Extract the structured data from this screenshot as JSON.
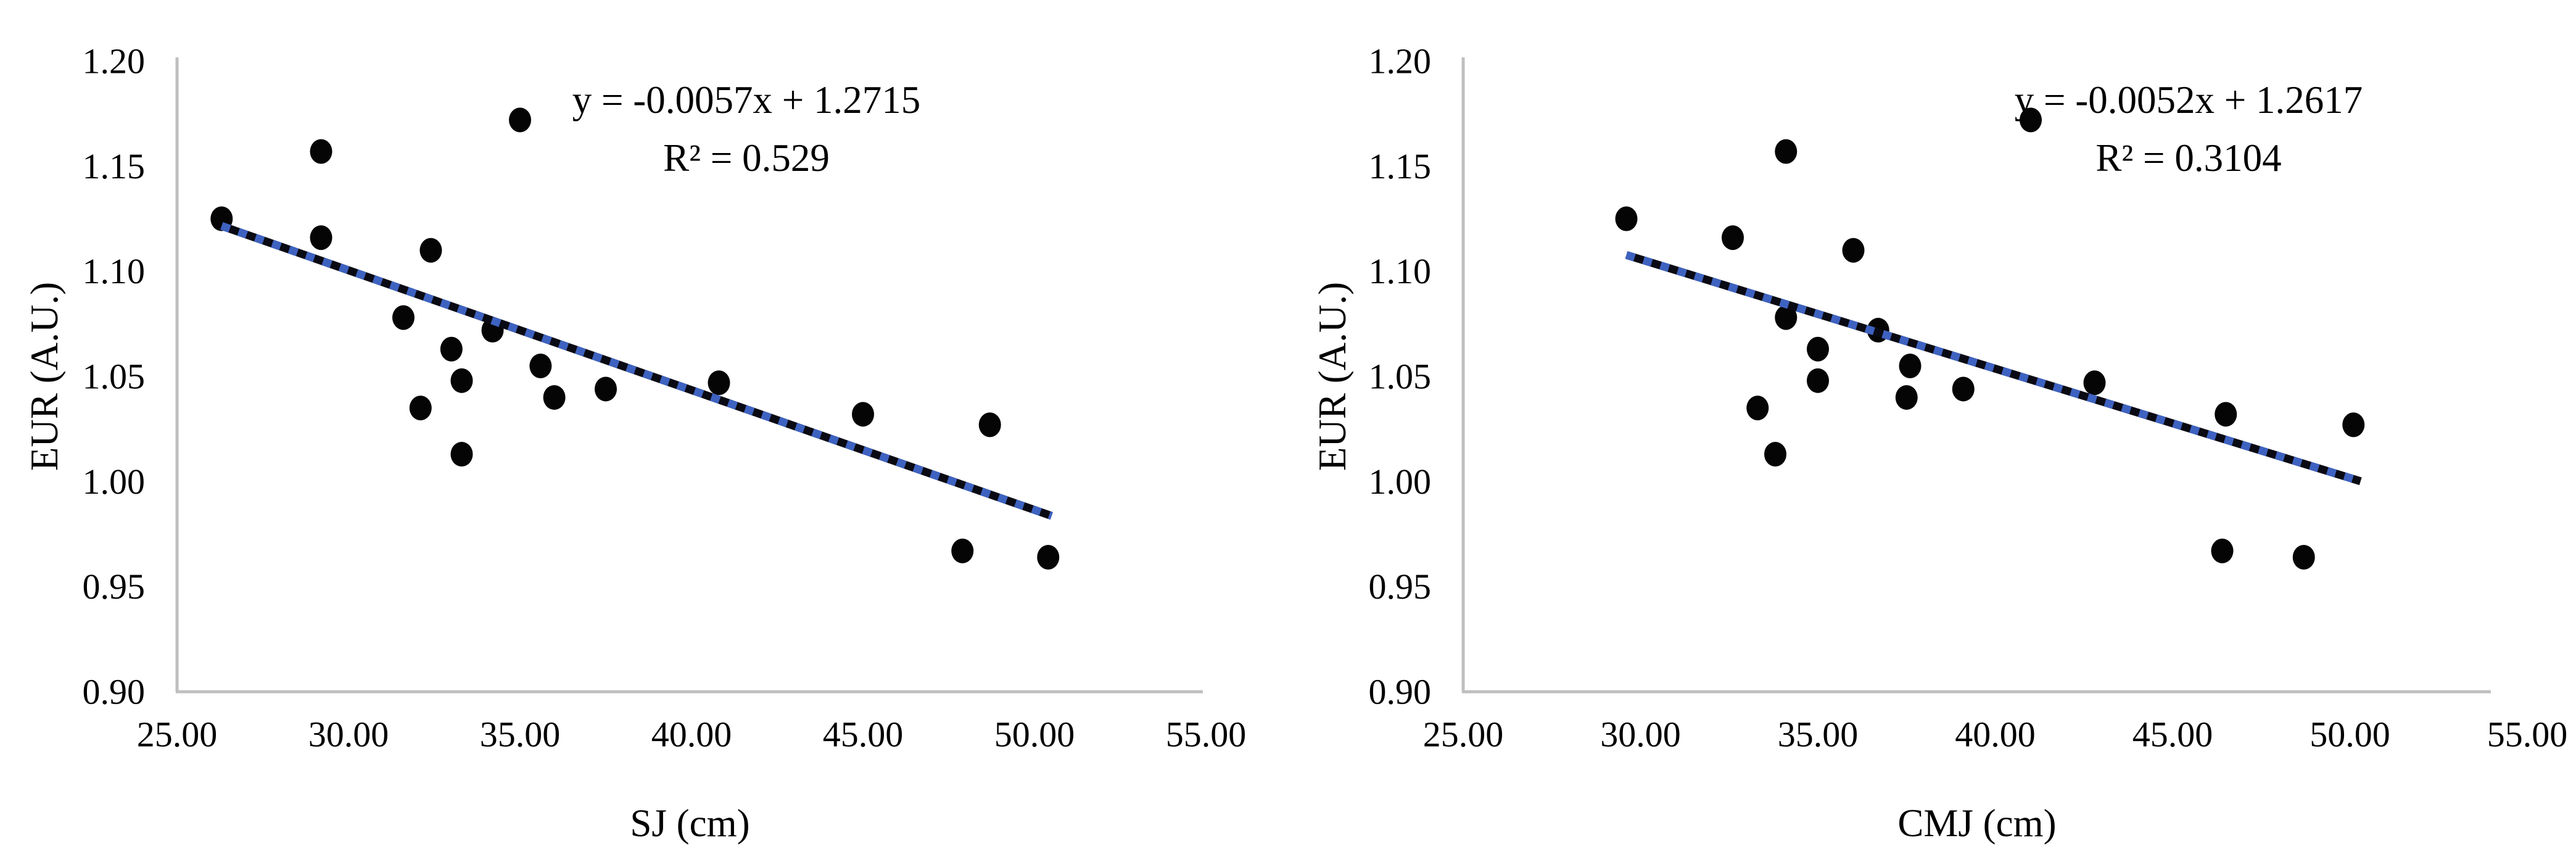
{
  "page": {
    "background": "#FFFFFF",
    "description": "Two scatter plots of elastic utilization ratio versus jump height"
  },
  "style": {
    "point_color": "#050505",
    "trend_base_color": "#0A0A14",
    "trend_dash_color": "#3E62C0",
    "axis_line_color": "#BFBFBF",
    "text_color": "#000000"
  },
  "chart_data": [
    {
      "type": "scatter",
      "title": "",
      "xlabel": "SJ (cm)",
      "ylabel": "EUR (A.U.)",
      "equation": "y = -0.0057x + 1.2715",
      "r_squared_label": "R² = 0.529",
      "legend_position": "none",
      "grid": false,
      "xlim": [
        25.0,
        55.0
      ],
      "ylim": [
        0.9,
        1.2
      ],
      "x_ticks": [
        "25.00",
        "30.00",
        "35.00",
        "40.00",
        "45.00",
        "50.00",
        "55.00"
      ],
      "y_ticks": [
        "1.20",
        "1.15",
        "1.10",
        "1.05",
        "1.00",
        "0.95",
        "0.90"
      ],
      "trend": {
        "slope": -0.0057,
        "intercept": 1.2715,
        "x_start": 26.3,
        "x_end": 50.5
      },
      "points": [
        [
          26.3,
          1.125
        ],
        [
          29.2,
          1.157
        ],
        [
          29.2,
          1.116
        ],
        [
          32.4,
          1.11
        ],
        [
          35.0,
          1.172
        ],
        [
          31.6,
          1.078
        ],
        [
          34.2,
          1.072
        ],
        [
          33.0,
          1.063
        ],
        [
          33.3,
          1.048
        ],
        [
          35.6,
          1.055
        ],
        [
          36.0,
          1.04
        ],
        [
          37.5,
          1.044
        ],
        [
          32.1,
          1.035
        ],
        [
          33.3,
          1.013
        ],
        [
          40.8,
          1.047
        ],
        [
          45.0,
          1.032
        ],
        [
          48.7,
          1.027
        ],
        [
          47.9,
          0.967
        ],
        [
          50.4,
          0.964
        ]
      ]
    },
    {
      "type": "scatter",
      "title": "",
      "xlabel": "CMJ (cm)",
      "ylabel": "EUR (A.U.)",
      "equation": "y = -0.0052x + 1.2617",
      "r_squared_label": "R² = 0.3104",
      "legend_position": "none",
      "grid": false,
      "xlim": [
        25.0,
        55.0
      ],
      "ylim": [
        0.9,
        1.2
      ],
      "x_ticks": [
        "25.00",
        "30.00",
        "35.00",
        "40.00",
        "45.00",
        "50.00",
        "55.00"
      ],
      "y_ticks": [
        "1.20",
        "1.15",
        "1.10",
        "1.05",
        "1.00",
        "0.95",
        "0.90"
      ],
      "trend": {
        "slope": -0.0052,
        "intercept": 1.2617,
        "x_start": 29.6,
        "x_end": 50.3
      },
      "points": [
        [
          29.6,
          1.125
        ],
        [
          34.1,
          1.157
        ],
        [
          32.6,
          1.116
        ],
        [
          36.0,
          1.11
        ],
        [
          41.0,
          1.172
        ],
        [
          34.1,
          1.078
        ],
        [
          36.7,
          1.072
        ],
        [
          35.0,
          1.063
        ],
        [
          35.0,
          1.048
        ],
        [
          37.6,
          1.055
        ],
        [
          37.5,
          1.04
        ],
        [
          39.1,
          1.044
        ],
        [
          33.3,
          1.035
        ],
        [
          33.8,
          1.013
        ],
        [
          42.8,
          1.047
        ],
        [
          46.5,
          1.032
        ],
        [
          50.1,
          1.027
        ],
        [
          46.4,
          0.967
        ],
        [
          48.7,
          0.964
        ]
      ]
    }
  ]
}
